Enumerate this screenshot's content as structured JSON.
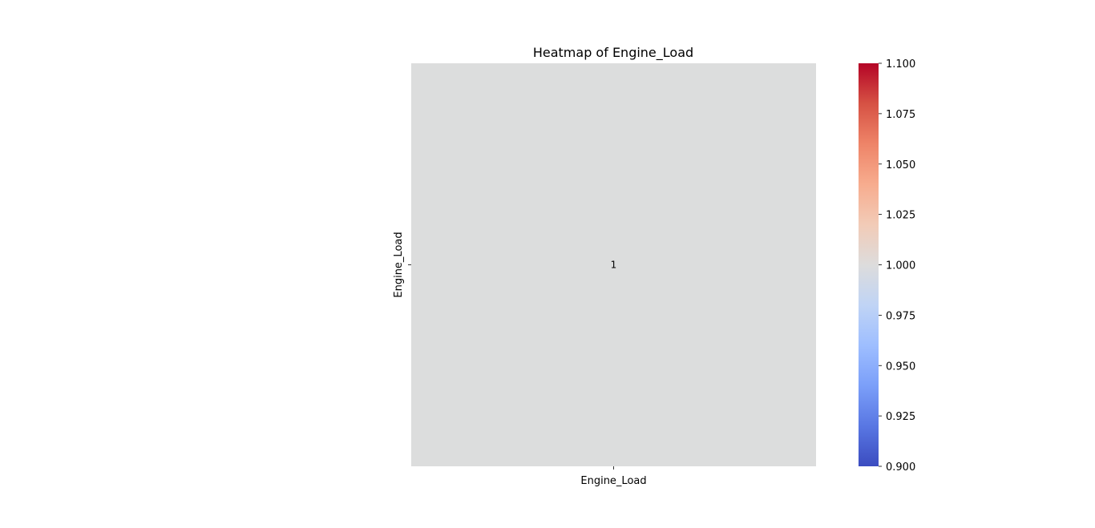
{
  "chart_data": {
    "type": "heatmap",
    "title": "Heatmap of Engine_Load",
    "x_categories": [
      "Engine_Load"
    ],
    "y_categories": [
      "Engine_Load"
    ],
    "values": [
      [
        1
      ]
    ],
    "annotations": [
      [
        "1"
      ]
    ],
    "cell_color": "#dcdddd",
    "colorbar": {
      "colormap": "coolwarm",
      "min": 0.9,
      "max": 1.1,
      "ticks": [
        "0.900",
        "0.925",
        "0.950",
        "0.975",
        "1.000",
        "1.025",
        "1.050",
        "1.075",
        "1.100"
      ],
      "colors": [
        "#3b4cc0",
        "#5977e3",
        "#7b9ff9",
        "#9ebeff",
        "#c0d4f5",
        "#dddcdc",
        "#f2cbb7",
        "#f7ac8e",
        "#ee8468",
        "#d65244",
        "#b40426"
      ]
    }
  }
}
